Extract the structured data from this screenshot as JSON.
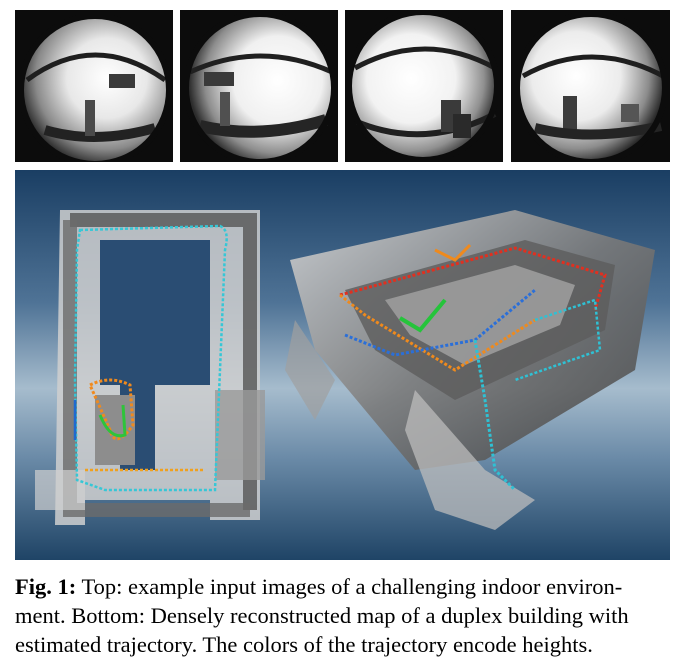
{
  "figure": {
    "label": "Fig. 1:",
    "caption_lines": [
      "Top: example input images of a challenging indoor environ-",
      "ment. Bottom: Densely reconstructed map of a duplex building with",
      "estimated trajectory. The colors of the trajectory encode heights."
    ]
  },
  "images": {
    "top_row_count": 4,
    "bottom_description_hidden": ""
  }
}
